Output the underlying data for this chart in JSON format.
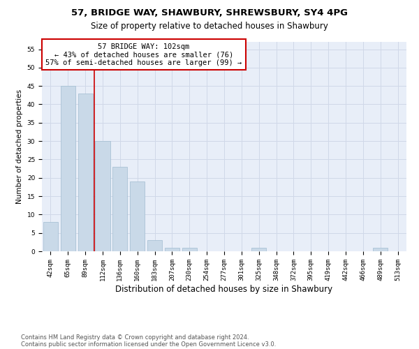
{
  "title": "57, BRIDGE WAY, SHAWBURY, SHREWSBURY, SY4 4PG",
  "subtitle": "Size of property relative to detached houses in Shawbury",
  "xlabel": "Distribution of detached houses by size in Shawbury",
  "ylabel": "Number of detached properties",
  "categories": [
    "42sqm",
    "65sqm",
    "89sqm",
    "112sqm",
    "136sqm",
    "160sqm",
    "183sqm",
    "207sqm",
    "230sqm",
    "254sqm",
    "277sqm",
    "301sqm",
    "325sqm",
    "348sqm",
    "372sqm",
    "395sqm",
    "419sqm",
    "442sqm",
    "466sqm",
    "489sqm",
    "513sqm"
  ],
  "values": [
    8,
    45,
    43,
    30,
    23,
    19,
    3,
    1,
    1,
    0,
    0,
    0,
    1,
    0,
    0,
    0,
    0,
    0,
    0,
    1,
    0
  ],
  "bar_color": "#c9d9e8",
  "bar_edge_color": "#a0bcd0",
  "grid_color": "#d0d8e8",
  "background_color": "#e8eef8",
  "property_line_x": 2.5,
  "property_label": "57 BRIDGE WAY: 102sqm",
  "annotation_line1": "← 43% of detached houses are smaller (76)",
  "annotation_line2": "57% of semi-detached houses are larger (99) →",
  "annotation_box_color": "#ffffff",
  "annotation_box_edge": "#cc0000",
  "vline_color": "#cc0000",
  "ylim": [
    0,
    57
  ],
  "yticks": [
    0,
    5,
    10,
    15,
    20,
    25,
    30,
    35,
    40,
    45,
    50,
    55
  ],
  "footer1": "Contains HM Land Registry data © Crown copyright and database right 2024.",
  "footer2": "Contains public sector information licensed under the Open Government Licence v3.0.",
  "title_fontsize": 9.5,
  "subtitle_fontsize": 8.5,
  "xlabel_fontsize": 8.5,
  "ylabel_fontsize": 7.5,
  "tick_fontsize": 6.5,
  "annotation_fontsize": 7.5,
  "footer_fontsize": 6.0
}
